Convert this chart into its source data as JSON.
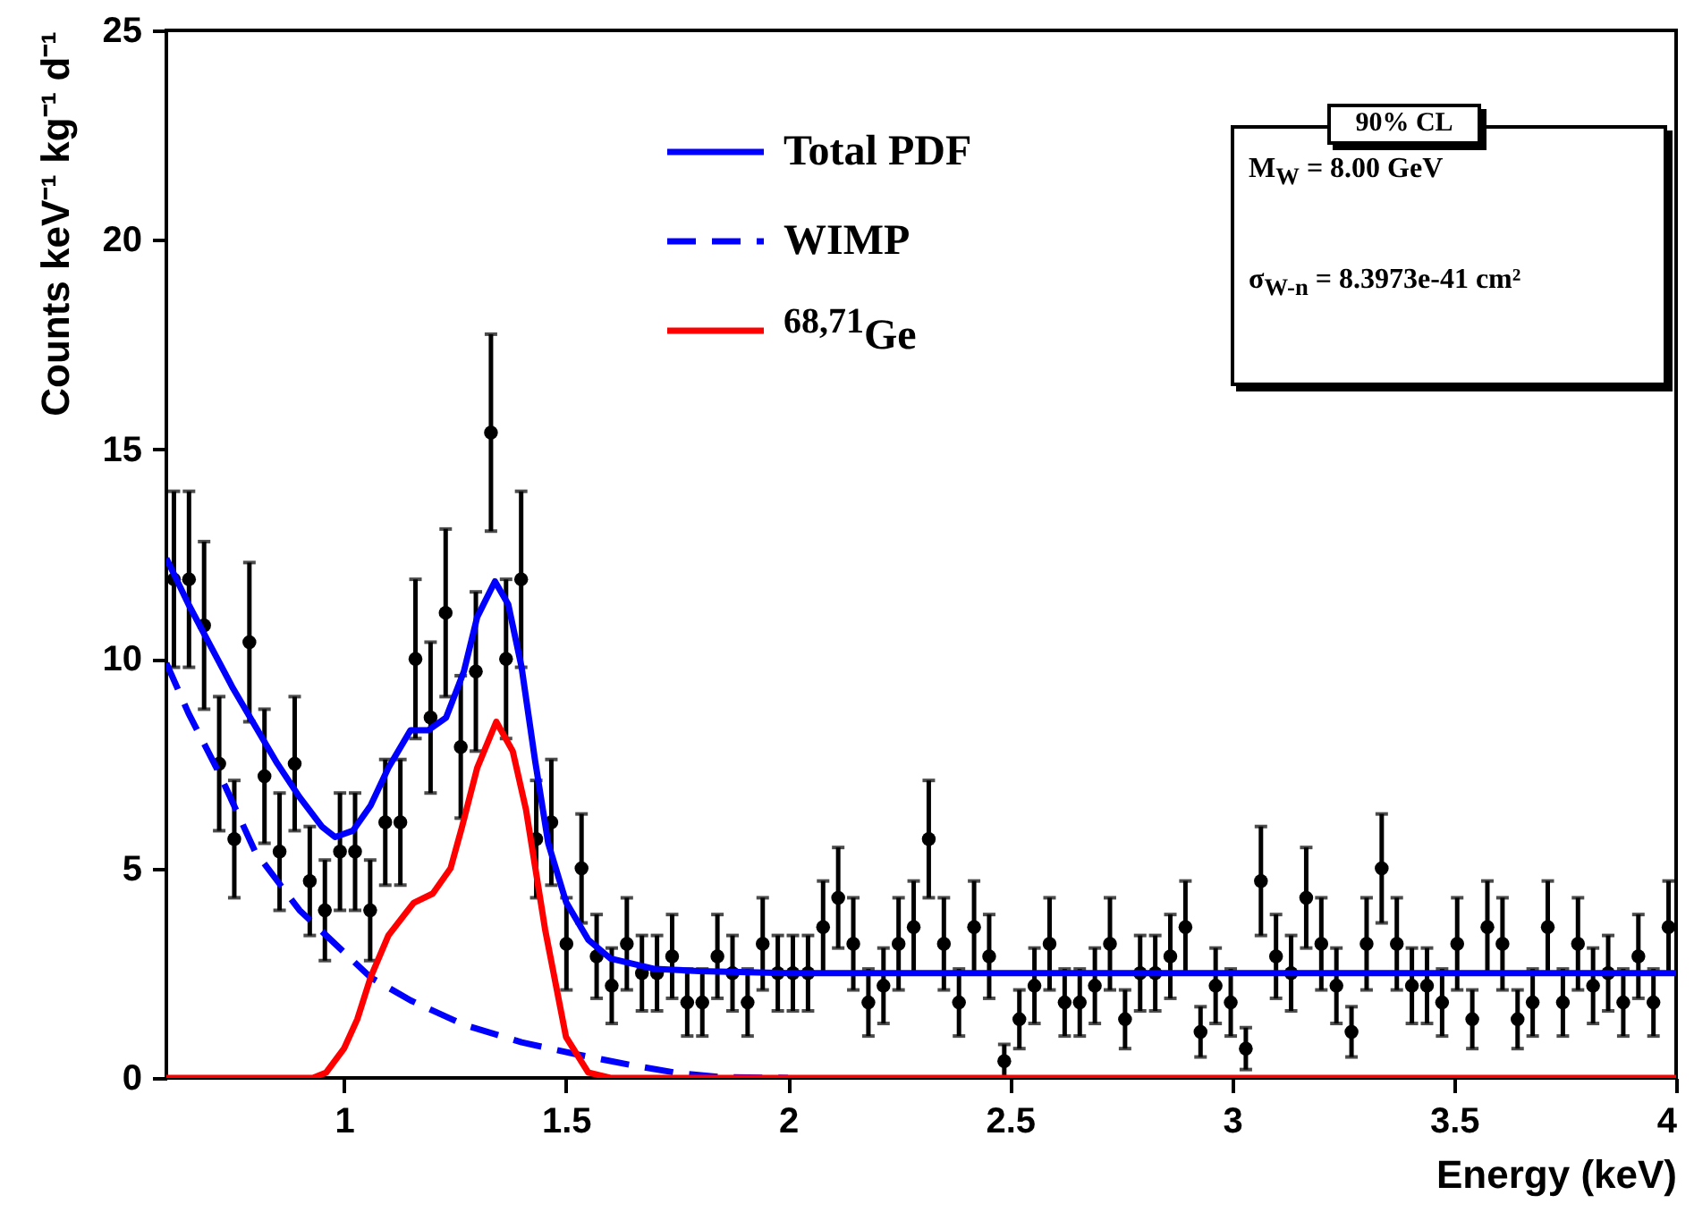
{
  "chart_data": {
    "type": "scatter",
    "xlabel": "Energy (keV)",
    "ylabel": "Counts keV⁻¹ kg⁻¹ d⁻¹",
    "xlim": [
      0.6,
      4
    ],
    "xticks": [
      1,
      1.5,
      2,
      2.5,
      3,
      3.5,
      4
    ],
    "ylim": [
      0,
      25
    ],
    "yticks": [
      0,
      5,
      10,
      15,
      20,
      25
    ],
    "grid": false,
    "legend": "top",
    "annotations": [
      "90% CL",
      "M$_{W}$ = 8.00 GeV",
      "σ$_{W-n}$ = 8.3973e-41 cm²"
    ],
    "x": [
      0.617,
      0.651,
      0.685,
      0.719,
      0.753,
      0.787,
      0.821,
      0.855,
      0.889,
      0.923,
      0.957,
      0.991,
      1.025,
      1.059,
      1.093,
      1.127,
      1.161,
      1.195,
      1.229,
      1.263,
      1.297,
      1.331,
      1.365,
      1.399,
      1.433,
      1.467,
      1.501,
      1.535,
      1.569,
      1.603,
      1.637,
      1.671,
      1.705,
      1.739,
      1.773,
      1.807,
      1.841,
      1.875,
      1.909,
      1.943,
      1.977,
      2.011,
      2.045,
      2.079,
      2.113,
      2.147,
      2.181,
      2.215,
      2.249,
      2.283,
      2.317,
      2.351,
      2.385,
      2.419,
      2.453,
      2.487,
      2.521,
      2.555,
      2.589,
      2.623,
      2.657,
      2.691,
      2.725,
      2.759,
      2.793,
      2.827,
      2.861,
      2.895,
      2.929,
      2.963,
      2.997,
      3.031,
      3.065,
      3.099,
      3.133,
      3.167,
      3.201,
      3.235,
      3.269,
      3.303,
      3.337,
      3.371,
      3.405,
      3.439,
      3.473,
      3.507,
      3.541,
      3.575,
      3.609,
      3.643,
      3.677,
      3.711,
      3.745,
      3.779,
      3.813,
      3.847,
      3.881,
      3.915,
      3.949,
      3.983
    ],
    "series": [
      {
        "marker": "circle",
        "color": "#000000",
        "values": [
          11.9,
          11.9,
          10.8,
          7.5,
          5.7,
          10.4,
          7.2,
          5.4,
          7.5,
          4.7,
          4.0,
          5.4,
          5.4,
          4.0,
          6.1,
          6.1,
          10.0,
          8.6,
          11.1,
          7.9,
          9.7,
          15.4,
          10.0,
          11.9,
          5.7,
          6.1,
          3.2,
          5.0,
          2.9,
          2.2,
          3.2,
          2.5,
          2.5,
          2.9,
          1.8,
          1.8,
          2.9,
          2.5,
          1.8,
          3.2,
          2.5,
          2.5,
          2.5,
          3.6,
          4.3,
          3.2,
          1.8,
          2.2,
          3.2,
          3.6,
          5.7,
          3.2,
          1.8,
          3.6,
          2.9,
          0.4,
          1.4,
          2.2,
          3.2,
          1.8,
          1.8,
          2.2,
          3.2,
          1.4,
          2.5,
          2.5,
          2.9,
          3.6,
          1.1,
          2.2,
          1.8,
          0.7,
          4.7,
          2.9,
          2.5,
          4.3,
          3.2,
          2.2,
          1.1,
          3.2,
          5.0,
          3.2,
          2.2,
          2.2,
          1.8,
          3.2,
          1.4,
          3.6,
          3.2,
          1.4,
          1.8,
          3.6,
          1.8,
          3.2,
          2.2,
          2.5,
          1.8,
          2.9,
          1.8,
          3.6
        ],
        "errors": [
          2.1,
          2.1,
          2.0,
          1.6,
          1.4,
          1.9,
          1.6,
          1.4,
          1.6,
          1.3,
          1.2,
          1.4,
          1.4,
          1.2,
          1.5,
          1.5,
          1.9,
          1.8,
          2.0,
          1.7,
          1.9,
          2.35,
          1.9,
          2.1,
          1.4,
          1.5,
          1.1,
          1.3,
          1.0,
          0.9,
          1.1,
          0.9,
          0.9,
          1.0,
          0.8,
          0.8,
          1.0,
          0.9,
          0.8,
          1.1,
          0.9,
          0.9,
          0.9,
          1.1,
          1.2,
          1.1,
          0.8,
          0.9,
          1.1,
          1.1,
          1.4,
          1.1,
          0.8,
          1.1,
          1.0,
          0.4,
          0.7,
          0.9,
          1.1,
          0.8,
          0.8,
          0.9,
          1.1,
          0.7,
          0.9,
          0.9,
          1.0,
          1.1,
          0.6,
          0.9,
          0.8,
          0.5,
          1.3,
          1.0,
          0.9,
          1.2,
          1.1,
          0.9,
          0.6,
          1.1,
          1.3,
          1.1,
          0.9,
          0.9,
          0.8,
          1.1,
          0.7,
          1.1,
          1.1,
          0.7,
          0.8,
          1.1,
          0.8,
          1.1,
          0.9,
          0.9,
          0.8,
          1.0,
          0.8,
          1.1
        ]
      },
      {
        "type": "line",
        "name": "Total PDF",
        "color": "#0000ff",
        "line_style": "solid",
        "marker": "none",
        "x": [
          0.6,
          0.65,
          0.7,
          0.75,
          0.8,
          0.85,
          0.9,
          0.95,
          0.98,
          1.02,
          1.06,
          1.1,
          1.15,
          1.19,
          1.23,
          1.27,
          1.3,
          1.34,
          1.37,
          1.4,
          1.43,
          1.46,
          1.5,
          1.55,
          1.6,
          1.7,
          1.8,
          2.0,
          3.0,
          4.0
        ],
        "values": [
          12.4,
          11.3,
          10.3,
          9.3,
          8.4,
          7.5,
          6.7,
          6.0,
          5.75,
          5.9,
          6.5,
          7.4,
          8.3,
          8.3,
          8.6,
          9.7,
          11.0,
          11.85,
          11.3,
          9.8,
          7.6,
          5.6,
          4.2,
          3.3,
          2.85,
          2.6,
          2.55,
          2.5,
          2.5,
          2.5
        ]
      },
      {
        "type": "line",
        "name": "WIMP",
        "color": "#0000ff",
        "line_style": "dashed",
        "marker": "none",
        "x": [
          0.6,
          0.65,
          0.72,
          0.8,
          0.9,
          1.0,
          1.06,
          1.15,
          1.27,
          1.4,
          1.53,
          1.65,
          1.75,
          1.85,
          2.0
        ],
        "values": [
          9.9,
          8.7,
          7.25,
          5.4,
          4.0,
          3.0,
          2.4,
          1.85,
          1.27,
          0.85,
          0.55,
          0.3,
          0.12,
          0.02,
          0
        ]
      },
      {
        "type": "line",
        "name": "$^{68,71}$Ge",
        "color": "#ff0000",
        "line_style": "solid",
        "marker": "none",
        "x": [
          0.6,
          0.93,
          0.96,
          1.0,
          1.03,
          1.06,
          1.1,
          1.157,
          1.2,
          1.24,
          1.265,
          1.3,
          1.343,
          1.38,
          1.41,
          1.453,
          1.5,
          1.55,
          1.6,
          4.0
        ],
        "values": [
          0,
          0,
          0.13,
          0.7,
          1.4,
          2.4,
          3.4,
          4.18,
          4.4,
          5.0,
          5.96,
          7.4,
          8.5,
          7.8,
          6.4,
          3.54,
          0.98,
          0.13,
          0,
          0
        ]
      }
    ]
  }
}
